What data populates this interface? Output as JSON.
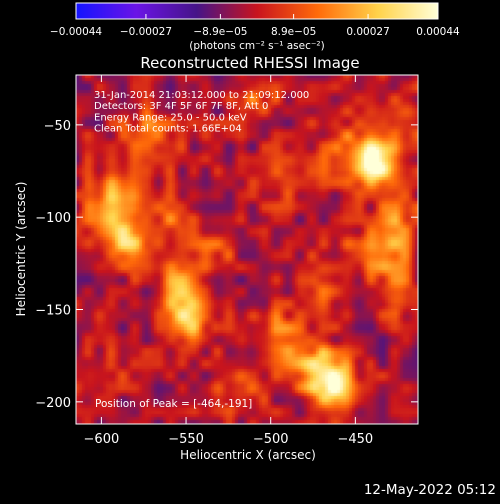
{
  "chart_data": {
    "type": "heatmap",
    "title": "Reconstructed RHESSI Image",
    "xlabel": "Heliocentric X (arcsec)",
    "ylabel": "Heliocentric Y (arcsec)",
    "xlim": [
      -615,
      -413
    ],
    "ylim": [
      -212,
      -23
    ],
    "x_ticks": [
      -600,
      -550,
      -500,
      -450
    ],
    "y_ticks": [
      -50,
      -100,
      -150,
      -200
    ],
    "x_tick_labels": [
      "−600",
      "−550",
      "−500",
      "−450"
    ],
    "y_tick_labels": [
      "−50",
      "−100",
      "−150",
      "−200"
    ],
    "info_lines": [
      "31-Jan-2014 21:03:12.000 to 21:09:12.000",
      "Detectors: 3F 4F 5F 6F 7F 8F, Att 0",
      "Energy Range: 25.0 - 50.0 keV",
      "Clean    Total counts: 1.66E+04"
    ],
    "peak_label": "Position of Peak = [-464,-191]",
    "colorbar": {
      "range": [
        -0.00044,
        0.00044
      ],
      "tick_values": [
        -0.00044,
        -0.00027,
        -8.9e-05,
        8.9e-05,
        0.00027,
        0.00044
      ],
      "tick_labels": [
        "−0.00044",
        "−0.00027",
        "−8.9e−05",
        "8.9e−05",
        "0.00027",
        "0.00044"
      ],
      "unit_label": "(photons cm⁻² s⁻¹ asec⁻²)"
    },
    "colormap": [
      "#1414ff",
      "#6a14e6",
      "#461488",
      "#c8141e",
      "#ff6a0a",
      "#ffd24a",
      "#ffffd8"
    ],
    "sources": [
      {
        "x": -592,
        "y": -95,
        "sx": 11,
        "sy": 14,
        "amp": 0.0003
      },
      {
        "x": -584,
        "y": -115,
        "sx": 9,
        "sy": 9,
        "amp": 0.00022
      },
      {
        "x": -572,
        "y": -55,
        "sx": 12,
        "sy": 10,
        "amp": 0.00018
      },
      {
        "x": -560,
        "y": -100,
        "sx": 9,
        "sy": 12,
        "amp": 0.00016
      },
      {
        "x": -553,
        "y": -140,
        "sx": 9,
        "sy": 12,
        "amp": 0.00027
      },
      {
        "x": -547,
        "y": -158,
        "sx": 8,
        "sy": 9,
        "amp": 0.00025
      },
      {
        "x": -535,
        "y": -118,
        "sx": 10,
        "sy": 8,
        "amp": 0.00015
      },
      {
        "x": -510,
        "y": -35,
        "sx": 10,
        "sy": 8,
        "amp": 0.00015
      },
      {
        "x": -495,
        "y": -165,
        "sx": 11,
        "sy": 11,
        "amp": 0.0002
      },
      {
        "x": -490,
        "y": -80,
        "sx": 12,
        "sy": 10,
        "amp": 0.0001
      },
      {
        "x": -470,
        "y": -140,
        "sx": 9,
        "sy": 10,
        "amp": 0.00017
      },
      {
        "x": -464,
        "y": -191,
        "sx": 10,
        "sy": 10,
        "amp": 0.00044
      },
      {
        "x": -475,
        "y": -178,
        "sx": 10,
        "sy": 8,
        "amp": 0.0002
      },
      {
        "x": -450,
        "y": -65,
        "sx": 13,
        "sy": 12,
        "amp": 0.00022
      },
      {
        "x": -438,
        "y": -70,
        "sx": 8,
        "sy": 8,
        "amp": 0.0004
      },
      {
        "x": -425,
        "y": -105,
        "sx": 8,
        "sy": 16,
        "amp": 0.00022
      },
      {
        "x": -440,
        "y": -120,
        "sx": 12,
        "sy": 10,
        "amp": 0.00018
      },
      {
        "x": -425,
        "y": -140,
        "sx": 7,
        "sy": 9,
        "amp": 0.00018
      },
      {
        "x": -420,
        "y": -50,
        "sx": 8,
        "sy": 12,
        "amp": 0.00015
      },
      {
        "x": -600,
        "y": -185,
        "sx": 10,
        "sy": 10,
        "amp": 0.0001
      },
      {
        "x": -520,
        "y": -195,
        "sx": 12,
        "sy": 8,
        "amp": 0.00012
      }
    ],
    "background_level": -3e-05,
    "noise_amplitude": 0.0001,
    "grid": false
  },
  "footer": {
    "date_stamp": "12-May-2022 05:12"
  }
}
